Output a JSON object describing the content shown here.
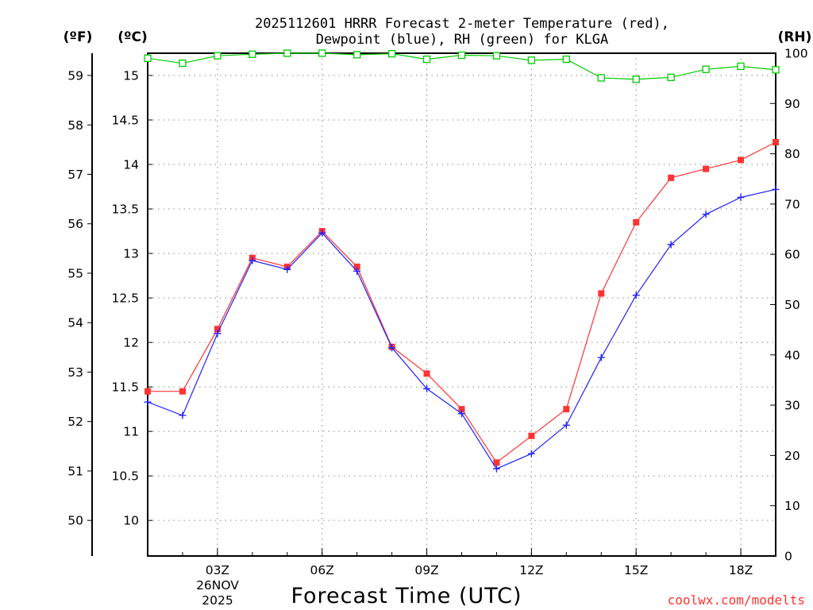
{
  "chart_data": {
    "type": "line",
    "title_line1": "2025112601 HRRR Forecast 2-meter Temperature (red),",
    "title_line2": "Dewpoint (blue), RH (green) for KLGA",
    "xlabel": "Forecast Time (UTC)",
    "date_label_line1": "26NOV",
    "date_label_line2": "2025",
    "credit": "coolwx.com/modelts",
    "units": {
      "fahrenheit": "(ºF)",
      "celsius": "(ºC)",
      "rh": "(RH)"
    },
    "x_hours": [
      1,
      2,
      3,
      4,
      5,
      6,
      7,
      8,
      9,
      10,
      11,
      12,
      13,
      14,
      15,
      16,
      17,
      18,
      19
    ],
    "xlim": [
      1,
      19
    ],
    "x_ticks": [
      {
        "hour": 3,
        "label": "03Z"
      },
      {
        "hour": 6,
        "label": "06Z"
      },
      {
        "hour": 9,
        "label": "09Z"
      },
      {
        "hour": 12,
        "label": "12Z"
      },
      {
        "hour": 15,
        "label": "15Z"
      },
      {
        "hour": 18,
        "label": "18Z"
      }
    ],
    "ylim_celsius": [
      9.6,
      15.25
    ],
    "ylim_rh": [
      0,
      100
    ],
    "celsius_ticks": [
      "10",
      "10.5",
      "11",
      "11.5",
      "12",
      "12.5",
      "13",
      "13.5",
      "14",
      "14.5",
      "15"
    ],
    "fahrenheit_ticks": [
      "50",
      "51",
      "52",
      "53",
      "54",
      "55",
      "56",
      "57",
      "58",
      "59"
    ],
    "rh_ticks": [
      "0",
      "10",
      "20",
      "30",
      "40",
      "50",
      "60",
      "70",
      "80",
      "90",
      "100"
    ],
    "colors": {
      "temperature": "#ff3333",
      "dewpoint": "#2222ff",
      "rh": "#00cc00",
      "credit": "#ff3333"
    },
    "series": [
      {
        "name": "Temperature",
        "unit": "C",
        "marker": "square",
        "values": [
          11.45,
          11.45,
          12.15,
          12.95,
          12.85,
          13.25,
          12.85,
          11.95,
          11.65,
          11.25,
          10.65,
          10.95,
          11.25,
          12.55,
          13.35,
          13.85,
          13.95,
          14.05,
          14.25
        ]
      },
      {
        "name": "Dewpoint",
        "unit": "C",
        "marker": "plus",
        "values": [
          11.33,
          11.18,
          12.1,
          12.92,
          12.82,
          13.23,
          12.8,
          11.94,
          11.48,
          11.2,
          10.58,
          10.75,
          11.07,
          11.83,
          12.53,
          13.1,
          13.44,
          13.63,
          13.72
        ]
      },
      {
        "name": "RH",
        "unit": "%",
        "marker": "open-square",
        "values": [
          99.0,
          98.0,
          99.5,
          99.8,
          100.0,
          100.0,
          99.7,
          99.9,
          98.8,
          99.6,
          99.5,
          98.6,
          98.8,
          95.1,
          94.8,
          95.2,
          96.8,
          97.4,
          96.7
        ]
      }
    ]
  }
}
